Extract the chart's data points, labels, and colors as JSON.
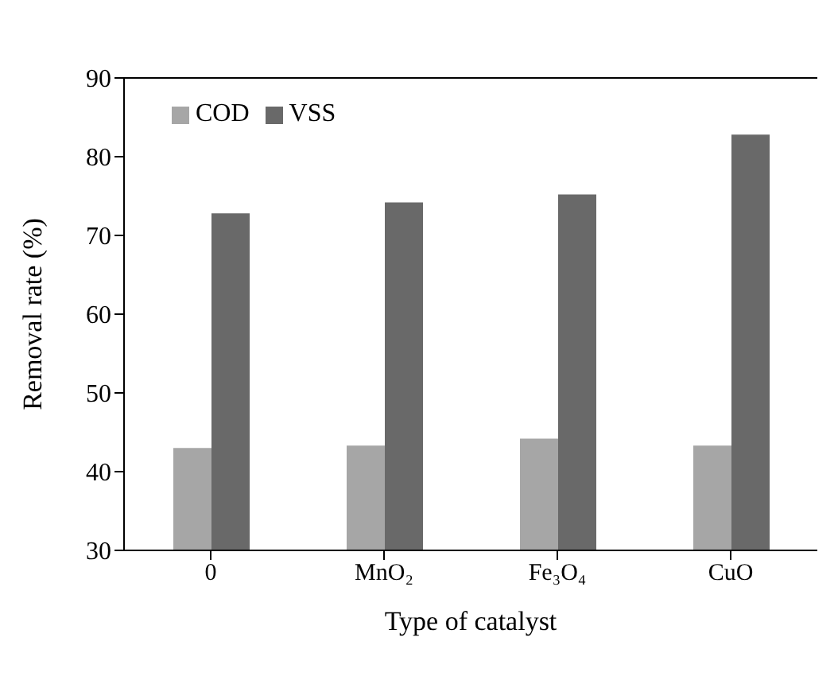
{
  "chart_data": {
    "type": "bar",
    "xlabel": "Type of catalyst",
    "ylabel": "Removal rate (%)",
    "categories": [
      "0",
      "MnO₂",
      "Fe₃O₄",
      "CuO"
    ],
    "series": [
      {
        "name": "COD",
        "color": "#a6a6a6",
        "values": [
          43.0,
          43.3,
          44.2,
          43.3
        ]
      },
      {
        "name": "VSS",
        "color": "#696969",
        "values": [
          72.8,
          74.2,
          75.2,
          82.8
        ]
      }
    ],
    "ylim": [
      30,
      90
    ],
    "yticks": [
      30,
      40,
      50,
      60,
      70,
      80,
      90
    ],
    "grid": false,
    "legend": "top left"
  }
}
